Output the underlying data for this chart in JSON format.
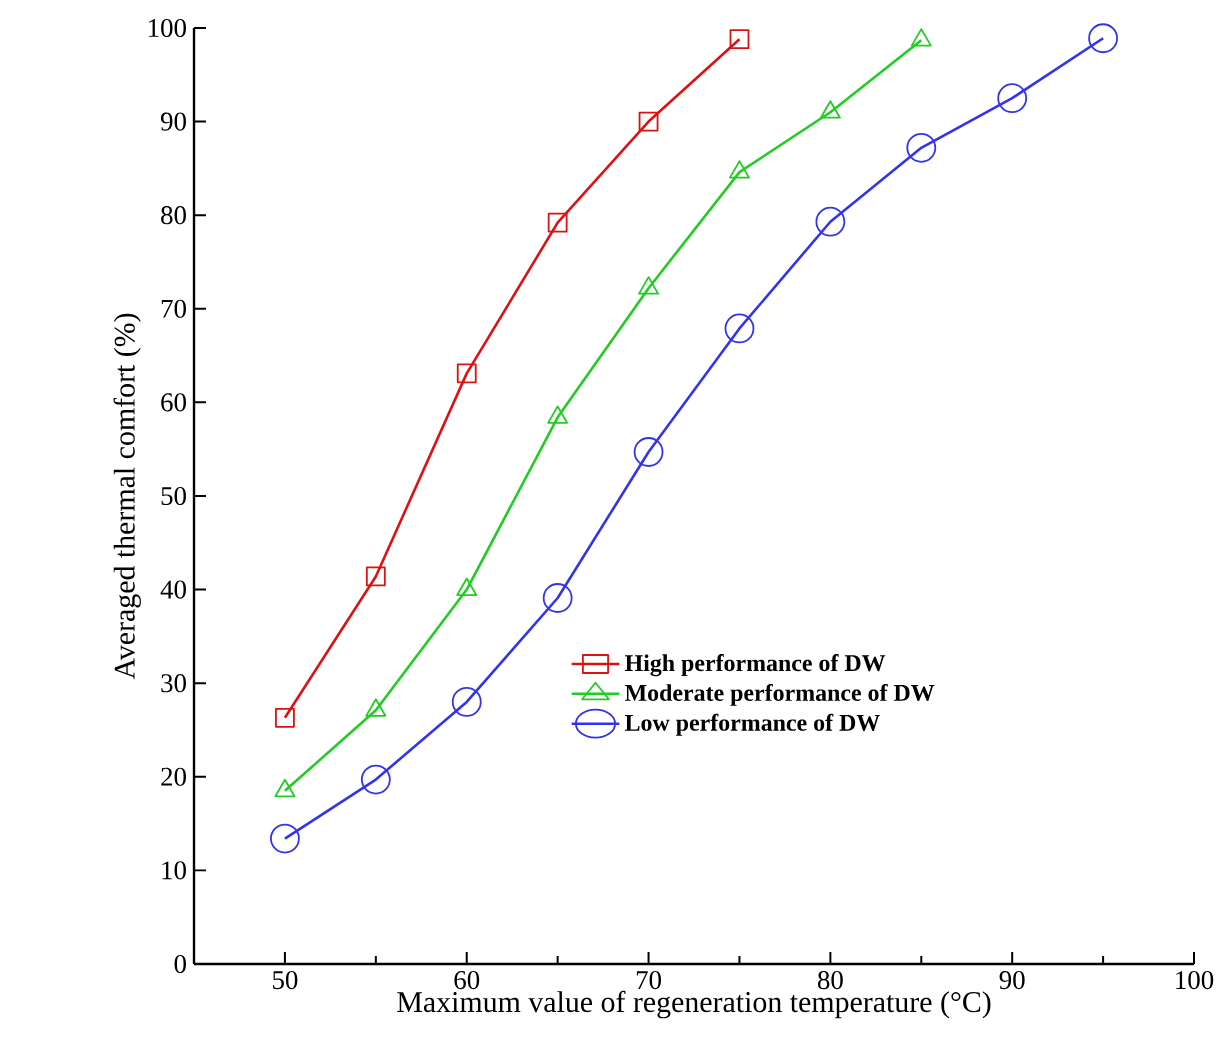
{
  "chart_data": {
    "type": "line",
    "xlabel": "Maximum value of regeneration temperature (°C)",
    "ylabel": "Averaged thermal comfort (%)",
    "xlim": [
      45,
      100
    ],
    "xticks": [
      50,
      60,
      70,
      80,
      90,
      100
    ],
    "ylim": [
      0,
      100
    ],
    "yticks": [
      0,
      10,
      20,
      30,
      40,
      50,
      60,
      70,
      80,
      90,
      100
    ],
    "grid": false,
    "legend": "right",
    "line_style": "solid",
    "series": [
      {
        "name": "High performance of DW",
        "color": "#dd1111",
        "marker": "square",
        "x": [
          50,
          55,
          60,
          65,
          70,
          75
        ],
        "values": [
          26.3,
          41.4,
          63.1,
          79.2,
          90,
          98.8
        ]
      },
      {
        "name": "Moderate performance of DW",
        "color": "#22cc22",
        "marker": "triangle",
        "x": [
          50,
          55,
          60,
          65,
          70,
          75,
          80,
          85
        ],
        "values": [
          18.5,
          27.1,
          40,
          58.4,
          72.2,
          84.6,
          91,
          98.7
        ]
      },
      {
        "name": "Low performance of DW",
        "color": "#3333ee",
        "marker": "circle",
        "x": [
          50,
          55,
          60,
          65,
          70,
          75,
          80,
          85,
          90,
          95
        ],
        "values": [
          13.4,
          19.7,
          28,
          39.1,
          54.7,
          67.9,
          79.3,
          87.2,
          92.5,
          98.9
        ]
      }
    ]
  }
}
